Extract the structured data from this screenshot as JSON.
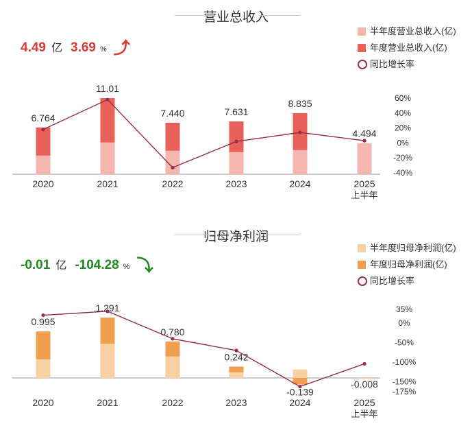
{
  "charts": [
    {
      "id": "revenue",
      "title": "营业总收入",
      "summary": {
        "value": "4.49",
        "unit": "亿",
        "growth": "3.69",
        "pct_symbol": "%",
        "direction": "up",
        "color": "#d93a33"
      },
      "colors": {
        "half": "#f5b6b0",
        "annual": "#e8605a",
        "line": "#9b2d48"
      },
      "legend": [
        {
          "label": "半年度营业总收入(亿)",
          "kind": "half"
        },
        {
          "label": "年度营业总收入(亿)",
          "kind": "annual"
        },
        {
          "label": "同比增长率",
          "kind": "line"
        }
      ]
    },
    {
      "id": "profit",
      "title": "归母净利润",
      "summary": {
        "value": "-0.01",
        "unit": "亿",
        "growth": "-104.28",
        "pct_symbol": "%",
        "direction": "down",
        "color": "#1e8a1e"
      },
      "colors": {
        "half": "#f8d0a2",
        "annual": "#f09e4f",
        "line": "#9b2d48"
      },
      "legend": [
        {
          "label": "半年度归母净利润(亿)",
          "kind": "half"
        },
        {
          "label": "年度归母净利润(亿)",
          "kind": "annual"
        },
        {
          "label": "同比增长率",
          "kind": "line"
        }
      ]
    }
  ],
  "chart_data": [
    {
      "type": "bar",
      "title": "营业总收入",
      "categories": [
        "2020",
        "2021",
        "2022",
        "2023",
        "2024",
        "2025\n上半年"
      ],
      "series": [
        {
          "name": "半年度营业总收入(亿)",
          "values": [
            2.7,
            4.6,
            3.4,
            3.2,
            3.5,
            4.494
          ]
        },
        {
          "name": "年度营业总收入(亿)",
          "values": [
            6.764,
            11.01,
            7.44,
            7.631,
            8.835,
            null
          ]
        },
        {
          "name": "同比增长率",
          "type": "line",
          "axis": "right",
          "values": [
            18,
            58,
            -33,
            2,
            14,
            3
          ]
        }
      ],
      "data_labels": [
        "6.764",
        "11.01",
        "7.440",
        "7.631",
        "8.835",
        "4.494"
      ],
      "right_axis_ticks": [
        "60%",
        "40%",
        "20%",
        "0%",
        "-20%",
        "-40%"
      ],
      "right_axis_values": [
        60,
        40,
        20,
        0,
        -20,
        -40
      ],
      "ylim": [
        0,
        12
      ],
      "y2lim": [
        -40,
        60
      ],
      "legend": "top-right",
      "grid": false
    },
    {
      "type": "bar",
      "title": "归母净利润",
      "categories": [
        "2020",
        "2021",
        "2022",
        "2023",
        "2024",
        "2025\n上半年"
      ],
      "series": [
        {
          "name": "半年度归母净利润(亿)",
          "values": [
            0.4,
            0.73,
            0.46,
            0.12,
            0.18,
            -0.008
          ]
        },
        {
          "name": "年度归母净利润(亿)",
          "values": [
            0.995,
            1.291,
            0.78,
            0.242,
            -0.139,
            null
          ]
        },
        {
          "name": "同比增长率",
          "type": "line",
          "axis": "right",
          "values": [
            20,
            30,
            -40,
            -70,
            -162,
            -104
          ]
        }
      ],
      "data_labels": [
        "0.995",
        "1.291",
        "0.780",
        "0.242",
        "-0.139",
        "-0.008"
      ],
      "right_axis_ticks": [
        "35%",
        "0%",
        "-50%",
        "-100%",
        "-150%",
        "-175%"
      ],
      "right_axis_values": [
        35,
        0,
        -50,
        -100,
        -150,
        -175
      ],
      "ylim": [
        -0.2,
        1.4
      ],
      "y2lim": [
        -175,
        35
      ],
      "legend": "top-right",
      "grid": false
    }
  ]
}
